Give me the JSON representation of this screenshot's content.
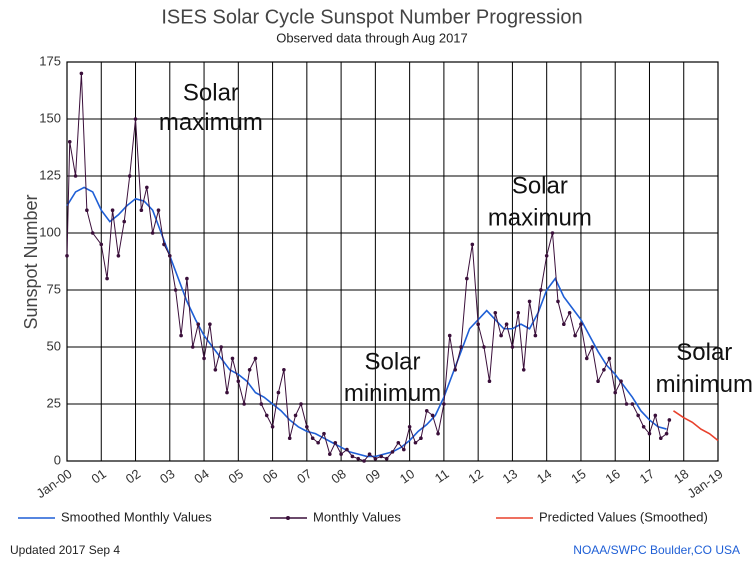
{
  "chart_data": {
    "type": "line",
    "title": "ISES Solar Cycle Sunspot Number Progression",
    "subtitle": "Observed data through Aug 2017",
    "y_label": "Sunspot Number",
    "xlim": [
      2000,
      2019
    ],
    "xticks": [
      {
        "value": 2000,
        "label": "Jan-00"
      },
      {
        "value": 2001,
        "label": "01"
      },
      {
        "value": 2002,
        "label": "02"
      },
      {
        "value": 2003,
        "label": "03"
      },
      {
        "value": 2004,
        "label": "04"
      },
      {
        "value": 2005,
        "label": "05"
      },
      {
        "value": 2006,
        "label": "06"
      },
      {
        "value": 2007,
        "label": "07"
      },
      {
        "value": 2008,
        "label": "08"
      },
      {
        "value": 2009,
        "label": "09"
      },
      {
        "value": 2010,
        "label": "10"
      },
      {
        "value": 2011,
        "label": "11"
      },
      {
        "value": 2012,
        "label": "12"
      },
      {
        "value": 2013,
        "label": "13"
      },
      {
        "value": 2014,
        "label": "14"
      },
      {
        "value": 2015,
        "label": "15"
      },
      {
        "value": 2016,
        "label": "16"
      },
      {
        "value": 2017,
        "label": "17"
      },
      {
        "value": 2018,
        "label": "18"
      },
      {
        "value": 2019,
        "label": "Jan-19"
      }
    ],
    "ylim": [
      0,
      175
    ],
    "yticks": [
      0,
      25,
      50,
      75,
      100,
      125,
      150,
      175
    ],
    "grid": true,
    "legend": "bottom",
    "series": [
      {
        "name": "Smoothed Monthly Values",
        "color": "#1f5fd6",
        "markers": false,
        "x": [
          2000,
          2000.25,
          2000.5,
          2000.75,
          2001,
          2001.25,
          2001.5,
          2001.75,
          2002,
          2002.25,
          2002.5,
          2002.75,
          2003,
          2003.25,
          2003.5,
          2003.75,
          2004,
          2004.25,
          2004.5,
          2004.75,
          2005,
          2005.25,
          2005.5,
          2005.75,
          2006,
          2006.25,
          2006.5,
          2006.75,
          2007,
          2007.25,
          2007.5,
          2007.75,
          2008,
          2008.25,
          2008.5,
          2008.75,
          2009,
          2009.25,
          2009.5,
          2009.75,
          2010,
          2010.25,
          2010.5,
          2010.75,
          2011,
          2011.25,
          2011.5,
          2011.75,
          2012,
          2012.25,
          2012.5,
          2012.75,
          2013,
          2013.25,
          2013.5,
          2013.75,
          2014,
          2014.25,
          2014.5,
          2014.75,
          2015,
          2015.25,
          2015.5,
          2015.75,
          2016,
          2016.25,
          2016.5,
          2016.75,
          2017,
          2017.25,
          2017.5
        ],
        "values": [
          112,
          118,
          120,
          118,
          110,
          105,
          108,
          112,
          115,
          114,
          110,
          100,
          90,
          80,
          70,
          62,
          55,
          50,
          45,
          40,
          38,
          35,
          30,
          28,
          25,
          22,
          18,
          15,
          13,
          12,
          10,
          8,
          6,
          4,
          3,
          2,
          2,
          3,
          4,
          6,
          9,
          13,
          16,
          20,
          28,
          38,
          48,
          58,
          62,
          66,
          62,
          58,
          58,
          60,
          58,
          65,
          75,
          80,
          72,
          67,
          62,
          55,
          48,
          42,
          38,
          33,
          28,
          22,
          18,
          15,
          14
        ]
      },
      {
        "name": "Monthly Values",
        "color": "#3a0f3a",
        "markers": true,
        "x": [
          2000,
          2000.08,
          2000.25,
          2000.42,
          2000.58,
          2000.75,
          2001,
          2001.17,
          2001.33,
          2001.5,
          2001.67,
          2001.83,
          2002,
          2002.17,
          2002.33,
          2002.5,
          2002.67,
          2002.83,
          2003,
          2003.17,
          2003.33,
          2003.5,
          2003.67,
          2003.83,
          2004,
          2004.17,
          2004.33,
          2004.5,
          2004.67,
          2004.83,
          2005,
          2005.17,
          2005.33,
          2005.5,
          2005.67,
          2005.83,
          2006,
          2006.17,
          2006.33,
          2006.5,
          2006.67,
          2006.83,
          2007,
          2007.17,
          2007.33,
          2007.5,
          2007.67,
          2007.83,
          2008,
          2008.17,
          2008.33,
          2008.5,
          2008.67,
          2008.83,
          2009,
          2009.17,
          2009.33,
          2009.5,
          2009.67,
          2009.83,
          2010,
          2010.17,
          2010.33,
          2010.5,
          2010.67,
          2010.83,
          2011,
          2011.17,
          2011.33,
          2011.5,
          2011.67,
          2011.83,
          2012,
          2012.17,
          2012.33,
          2012.5,
          2012.67,
          2012.83,
          2013,
          2013.17,
          2013.33,
          2013.5,
          2013.67,
          2013.83,
          2014,
          2014.17,
          2014.33,
          2014.5,
          2014.67,
          2014.83,
          2015,
          2015.17,
          2015.33,
          2015.5,
          2015.67,
          2015.83,
          2016,
          2016.17,
          2016.33,
          2016.5,
          2016.67,
          2016.83,
          2017,
          2017.17,
          2017.33,
          2017.5,
          2017.58
        ],
        "values": [
          90,
          140,
          125,
          170,
          110,
          100,
          95,
          80,
          110,
          90,
          105,
          125,
          150,
          110,
          120,
          100,
          110,
          95,
          90,
          75,
          55,
          80,
          50,
          60,
          45,
          60,
          40,
          50,
          30,
          45,
          35,
          25,
          40,
          45,
          25,
          20,
          15,
          30,
          40,
          10,
          20,
          25,
          15,
          10,
          8,
          12,
          3,
          8,
          3,
          5,
          2,
          1,
          0,
          3,
          1,
          2,
          1,
          4,
          8,
          5,
          15,
          8,
          10,
          22,
          20,
          12,
          25,
          55,
          40,
          50,
          80,
          95,
          60,
          50,
          35,
          65,
          55,
          60,
          50,
          65,
          40,
          70,
          55,
          75,
          90,
          100,
          70,
          60,
          65,
          55,
          60,
          45,
          50,
          35,
          40,
          45,
          30,
          35,
          25,
          25,
          20,
          15,
          12,
          20,
          10,
          12,
          18
        ]
      },
      {
        "name": "Predicted Values (Smoothed)",
        "color": "#e8412c",
        "markers": false,
        "x": [
          2017.7,
          2018,
          2018.25,
          2018.5,
          2018.75,
          2019
        ],
        "values": [
          22,
          19,
          17,
          14,
          12,
          9
        ]
      }
    ],
    "annotations": [
      {
        "text": "Solar",
        "x": 2004.2,
        "y": 161
      },
      {
        "text": "maximum",
        "x": 2004.2,
        "y": 148
      },
      {
        "text": "Solar",
        "x": 2009.5,
        "y": 43
      },
      {
        "text": "minimum",
        "x": 2009.5,
        "y": 29
      },
      {
        "text": "Solar",
        "x": 2013.8,
        "y": 120
      },
      {
        "text": "maximum",
        "x": 2013.8,
        "y": 106
      },
      {
        "text": "Solar",
        "x": 2018.6,
        "y": 47
      },
      {
        "text": "minimum",
        "x": 2018.6,
        "y": 33
      }
    ]
  },
  "footer": {
    "left": "Updated 2017 Sep  4",
    "right": "NOAA/SWPC Boulder,CO USA"
  }
}
